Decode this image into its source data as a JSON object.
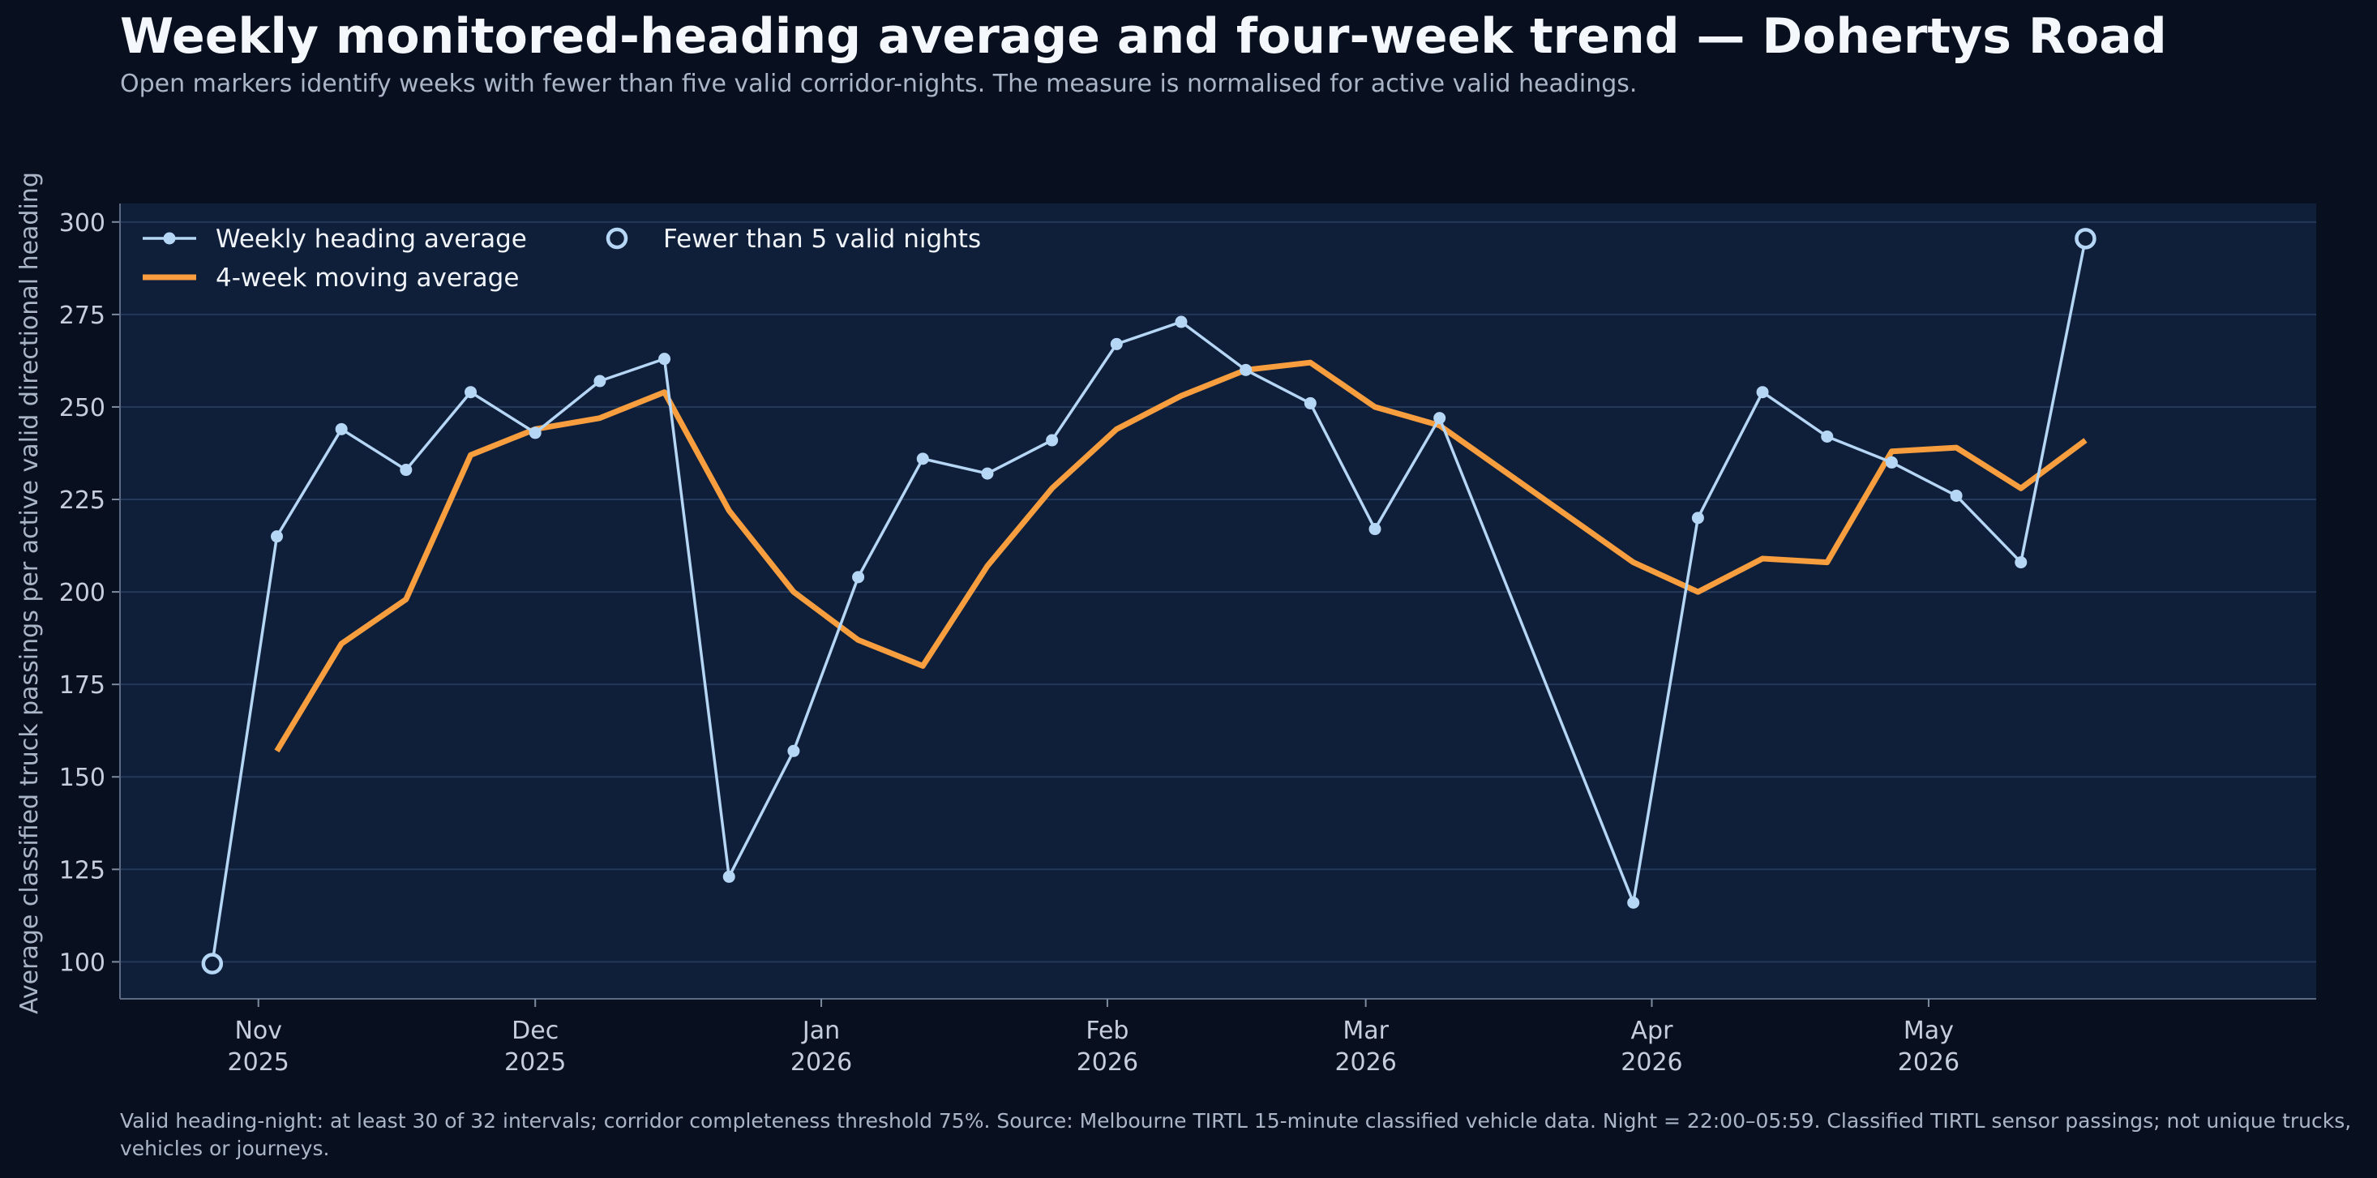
{
  "title": "Weekly monitored-heading average and four-week trend — Dohertys Road",
  "subtitle": "Open markers identify weeks with fewer than five valid corridor-nights. The measure is normalised for active valid headings.",
  "footnote": "Valid heading-night: at least 30 of 32 intervals; corridor completeness threshold 75%. Source: Melbourne TIRTL 15-minute classified vehicle data. Night = 22:00–05:59. Classified TIRTL sensor passings; not unique trucks, vehicles or journeys.",
  "colors": {
    "background": "#08101f",
    "plot_background": "#0f1f3a",
    "weekly_line": "#b6d6f6",
    "moving_average": "#f99e3e",
    "grid": "#24385a"
  },
  "chart_data": {
    "type": "line",
    "ylabel": "Average classified truck passings per active valid directional heading",
    "xlabel": "",
    "ylim": [
      90,
      305
    ],
    "y_ticks": [
      100,
      125,
      150,
      175,
      200,
      225,
      250,
      275,
      300
    ],
    "grid": "horizontal",
    "legend_placement": "top-left",
    "x_ticks": [
      {
        "date": "2025-11-01",
        "label_month": "Nov",
        "label_year": "2025"
      },
      {
        "date": "2025-12-01",
        "label_month": "Dec",
        "label_year": "2025"
      },
      {
        "date": "2026-01-01",
        "label_month": "Jan",
        "label_year": "2026"
      },
      {
        "date": "2026-02-01",
        "label_month": "Feb",
        "label_year": "2026"
      },
      {
        "date": "2026-03-01",
        "label_month": "Mar",
        "label_year": "2026"
      },
      {
        "date": "2026-04-01",
        "label_month": "Apr",
        "label_year": "2026"
      },
      {
        "date": "2026-05-01",
        "label_month": "May",
        "label_year": "2026"
      }
    ],
    "xlim": [
      "2025-10-17",
      "2026-06-12"
    ],
    "series": [
      {
        "name": "Weekly heading average",
        "points": [
          {
            "x": "2025-10-27",
            "y": 99.5,
            "low_nights": true
          },
          {
            "x": "2025-11-03",
            "y": 215
          },
          {
            "x": "2025-11-10",
            "y": 244
          },
          {
            "x": "2025-11-17",
            "y": 233
          },
          {
            "x": "2025-11-24",
            "y": 254
          },
          {
            "x": "2025-12-01",
            "y": 243
          },
          {
            "x": "2025-12-08",
            "y": 257
          },
          {
            "x": "2025-12-15",
            "y": 263
          },
          {
            "x": "2025-12-22",
            "y": 123
          },
          {
            "x": "2025-12-29",
            "y": 157
          },
          {
            "x": "2026-01-05",
            "y": 204
          },
          {
            "x": "2026-01-12",
            "y": 236
          },
          {
            "x": "2026-01-19",
            "y": 232
          },
          {
            "x": "2026-01-26",
            "y": 241
          },
          {
            "x": "2026-02-02",
            "y": 267
          },
          {
            "x": "2026-02-09",
            "y": 273
          },
          {
            "x": "2026-02-16",
            "y": 260
          },
          {
            "x": "2026-02-23",
            "y": 251
          },
          {
            "x": "2026-03-02",
            "y": 217
          },
          {
            "x": "2026-03-09",
            "y": 247
          },
          {
            "x": "2026-03-30",
            "y": 116
          },
          {
            "x": "2026-04-06",
            "y": 220
          },
          {
            "x": "2026-04-13",
            "y": 254
          },
          {
            "x": "2026-04-20",
            "y": 242
          },
          {
            "x": "2026-04-27",
            "y": 235
          },
          {
            "x": "2026-05-04",
            "y": 226
          },
          {
            "x": "2026-05-11",
            "y": 208
          },
          {
            "x": "2026-05-18",
            "y": 295.5,
            "low_nights": true
          }
        ]
      },
      {
        "name": "4-week moving average",
        "points": [
          {
            "x": "2025-11-03",
            "y": 157
          },
          {
            "x": "2025-11-10",
            "y": 186
          },
          {
            "x": "2025-11-17",
            "y": 198
          },
          {
            "x": "2025-11-24",
            "y": 237
          },
          {
            "x": "2025-12-01",
            "y": 244
          },
          {
            "x": "2025-12-08",
            "y": 247
          },
          {
            "x": "2025-12-15",
            "y": 254
          },
          {
            "x": "2025-12-22",
            "y": 222
          },
          {
            "x": "2025-12-29",
            "y": 200
          },
          {
            "x": "2026-01-05",
            "y": 187
          },
          {
            "x": "2026-01-12",
            "y": 180
          },
          {
            "x": "2026-01-19",
            "y": 207
          },
          {
            "x": "2026-01-26",
            "y": 228
          },
          {
            "x": "2026-02-02",
            "y": 244
          },
          {
            "x": "2026-02-09",
            "y": 253
          },
          {
            "x": "2026-02-16",
            "y": 260
          },
          {
            "x": "2026-02-23",
            "y": 262
          },
          {
            "x": "2026-03-02",
            "y": 250
          },
          {
            "x": "2026-03-09",
            "y": 245
          },
          {
            "x": "2026-03-30",
            "y": 208
          },
          {
            "x": "2026-04-06",
            "y": 200
          },
          {
            "x": "2026-04-13",
            "y": 209
          },
          {
            "x": "2026-04-20",
            "y": 208
          },
          {
            "x": "2026-04-27",
            "y": 238
          },
          {
            "x": "2026-05-04",
            "y": 239
          },
          {
            "x": "2026-05-11",
            "y": 228
          },
          {
            "x": "2026-05-18",
            "y": 241
          }
        ]
      }
    ],
    "legend": [
      {
        "label": "Weekly heading average"
      },
      {
        "label": "4-week moving average"
      },
      {
        "label": "Fewer than 5 valid nights"
      }
    ]
  }
}
